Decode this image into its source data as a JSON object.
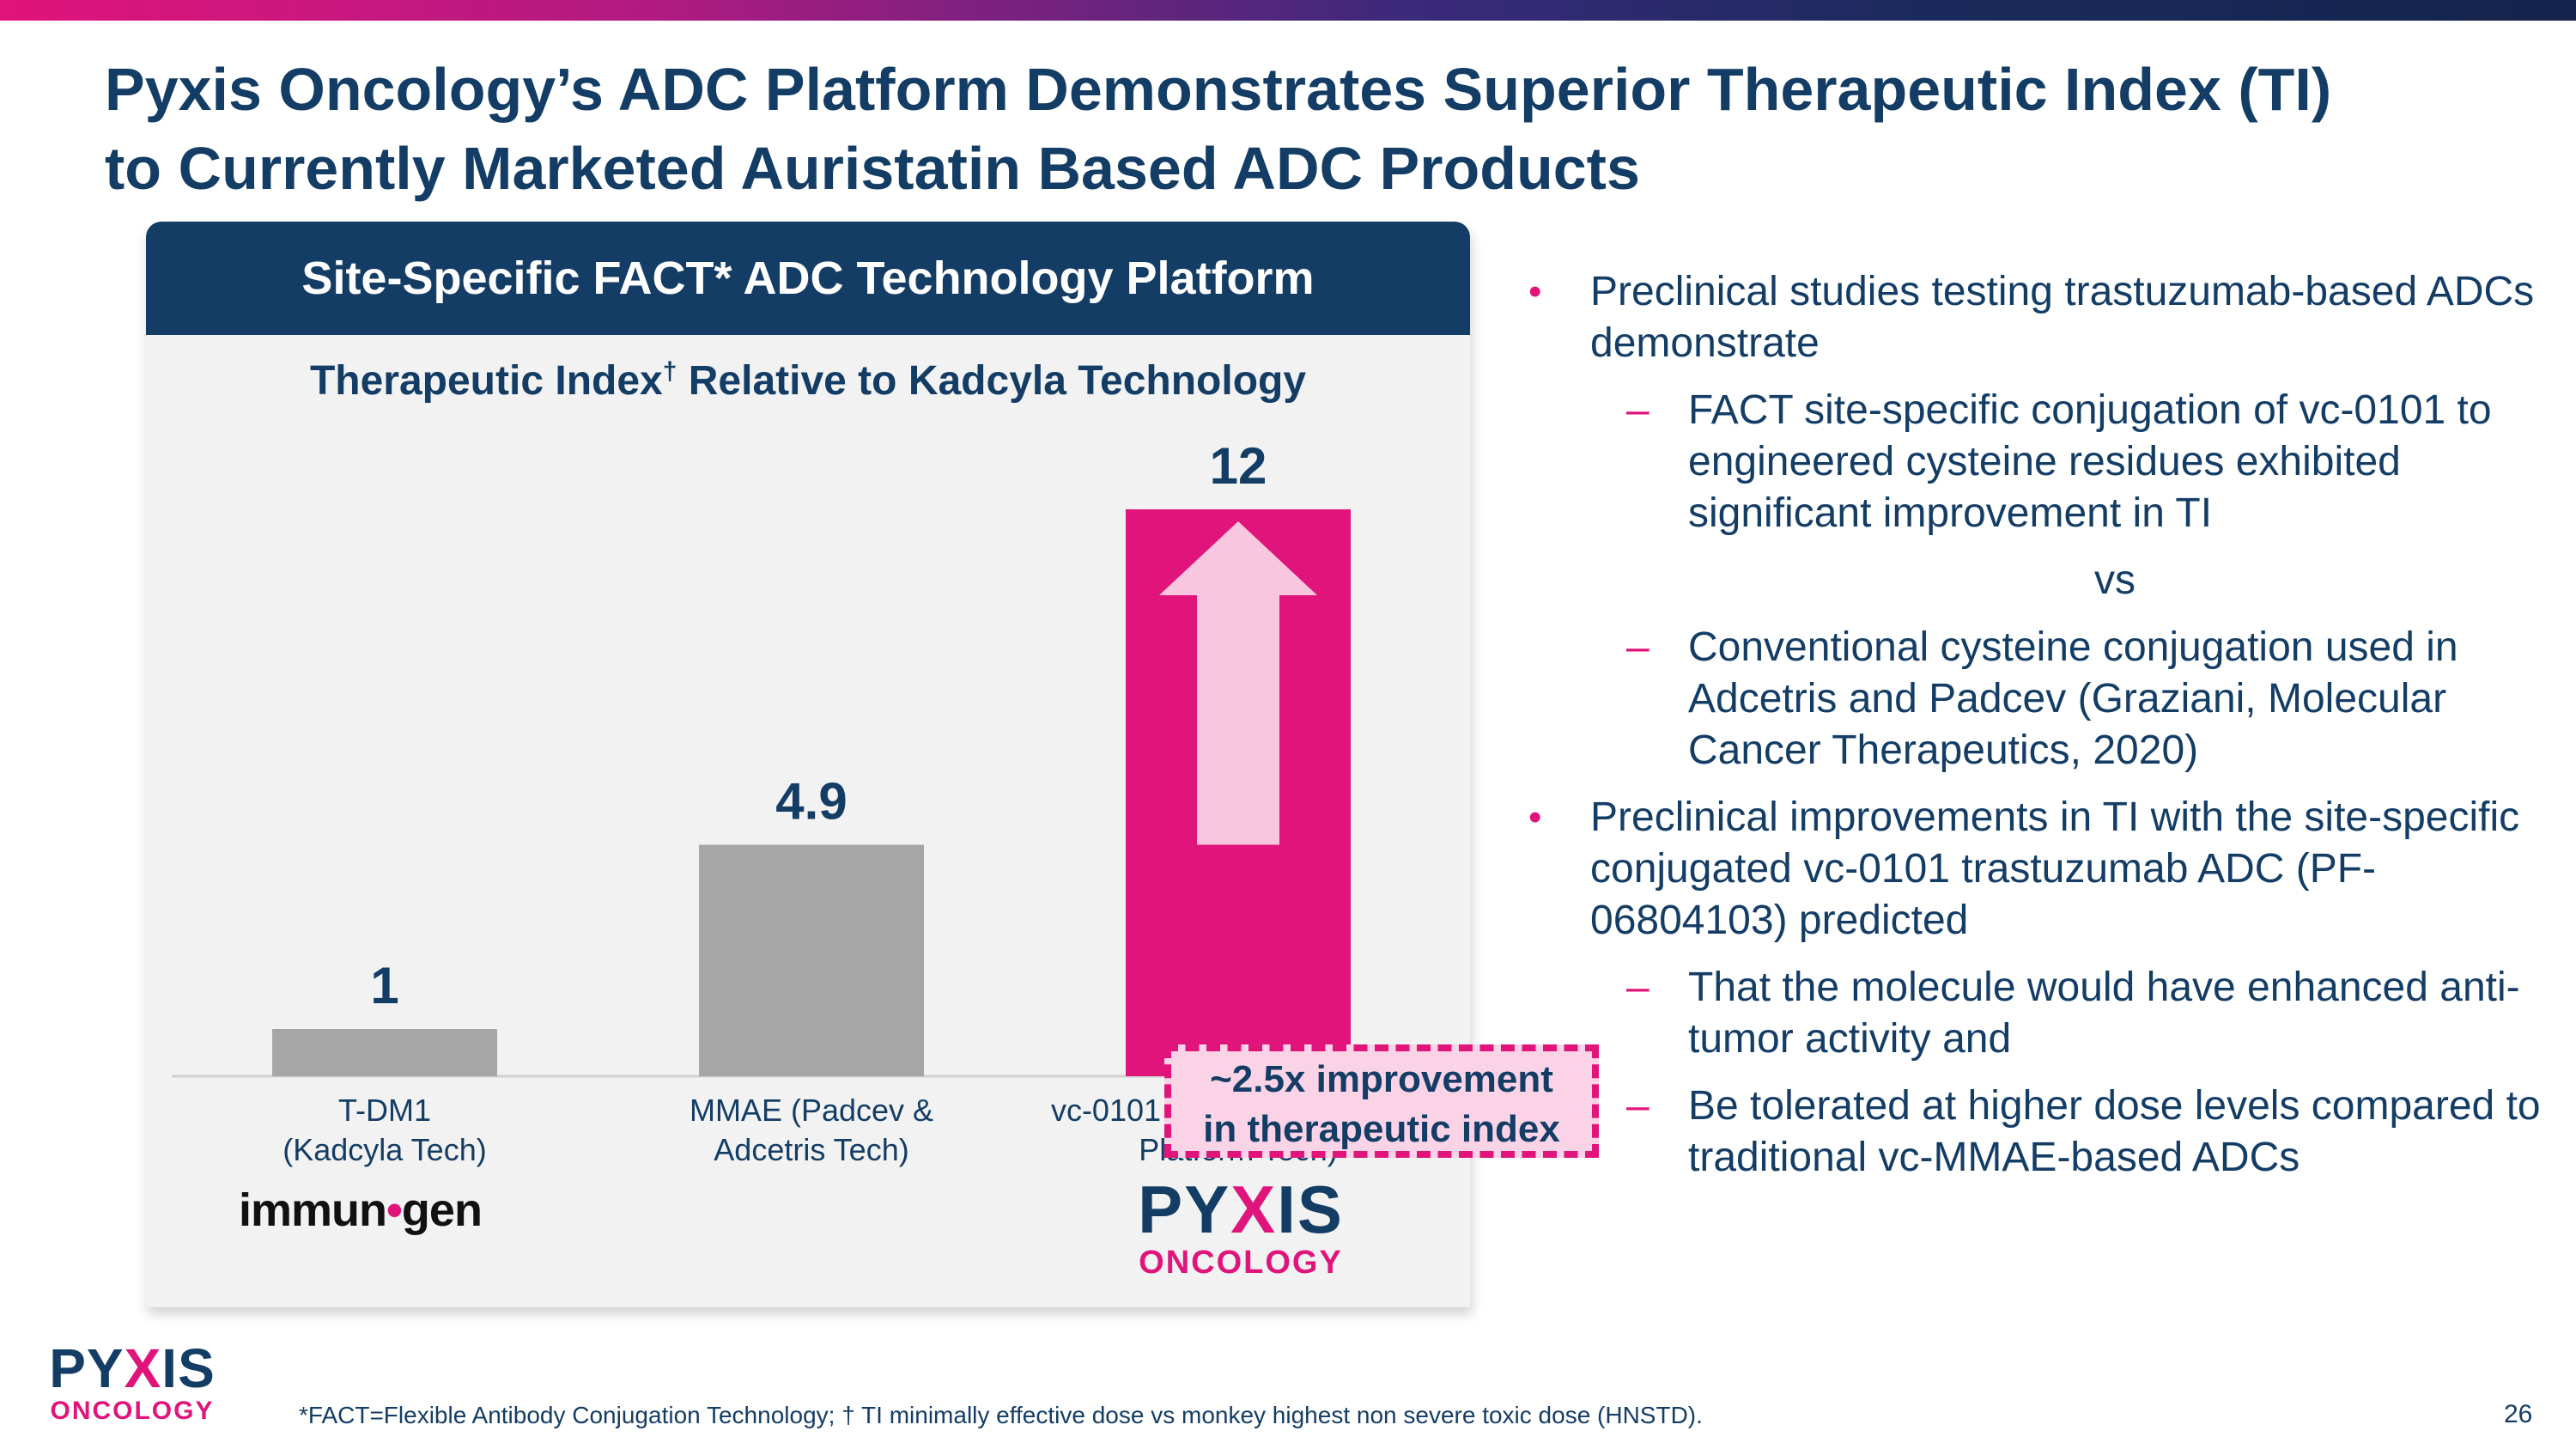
{
  "slide": {
    "title_line1": "Pyxis Oncology’s ADC Platform Demonstrates Superior Therapeutic Index (TI)",
    "title_line2": "to Currently Marketed Auristatin Based ADC Products",
    "page_number": "26",
    "footnote": "*FACT=Flexible Antibody Conjugation Technology; † TI minimally effective dose vs monkey highest non severe toxic dose (HNSTD)."
  },
  "panel": {
    "header": "Site-Specific FACT* ADC Technology Platform",
    "callout_line1": "~2.5x improvement",
    "callout_line2": "in therapeutic index"
  },
  "chart_data": {
    "type": "bar",
    "title": "Therapeutic Index",
    "title_suffix": " Relative to Kadcyla Technology",
    "title_mark": "†",
    "categories": [
      "T-DM1 (Kadcyla Tech)",
      "MMAE (Padcev & Adcetris Tech)",
      "vc-0101 (Pyxis FACT* ADC Platform Tech)"
    ],
    "category_lines": [
      [
        "T-DM1",
        "(Kadcyla Tech)"
      ],
      [
        "MMAE (Padcev &",
        "Adcetris Tech)"
      ],
      [
        "vc-0101 (Pyxis FACT* ADC",
        "Platform Tech)"
      ]
    ],
    "values": [
      1,
      4.9,
      12
    ],
    "value_labels": [
      "1",
      "4.9",
      "12"
    ],
    "colors": [
      "#a6a6a6",
      "#a6a6a6",
      "#e0147a"
    ],
    "arrow_color": "#f9c6df",
    "ylim": [
      0,
      12
    ],
    "grid": false,
    "legend": "none"
  },
  "logos": {
    "immunogen_a": "immun",
    "immunogen_dot": "•",
    "immunogen_b": "gen",
    "pyxis_a": "PY",
    "pyxis_x": "X",
    "pyxis_b": "IS",
    "pyxis_sub": "ONCOLOGY"
  },
  "bullets": {
    "b1": "Preclinical studies testing trastuzumab-based ADCs demonstrate",
    "b1_1": "FACT site-specific conjugation of vc-0101 to engineered cysteine residues exhibited significant improvement in TI",
    "vs": "vs",
    "b1_2": "Conventional cysteine conjugation used in Adcetris and Padcev (Graziani, Molecular Cancer Therapeutics, 2020)",
    "b2": "Preclinical improvements in TI with the site-specific conjugated vc-0101 trastuzumab ADC (PF-06804103) predicted",
    "b2_1": "That the molecule would have enhanced anti-tumor activity and",
    "b2_2": "Be tolerated at higher dose levels compared to traditional vc-MMAE-based ADCs"
  },
  "colors": {
    "navy": "#143d66",
    "magenta": "#e0147a",
    "panel_bg": "#f2f2f2"
  }
}
